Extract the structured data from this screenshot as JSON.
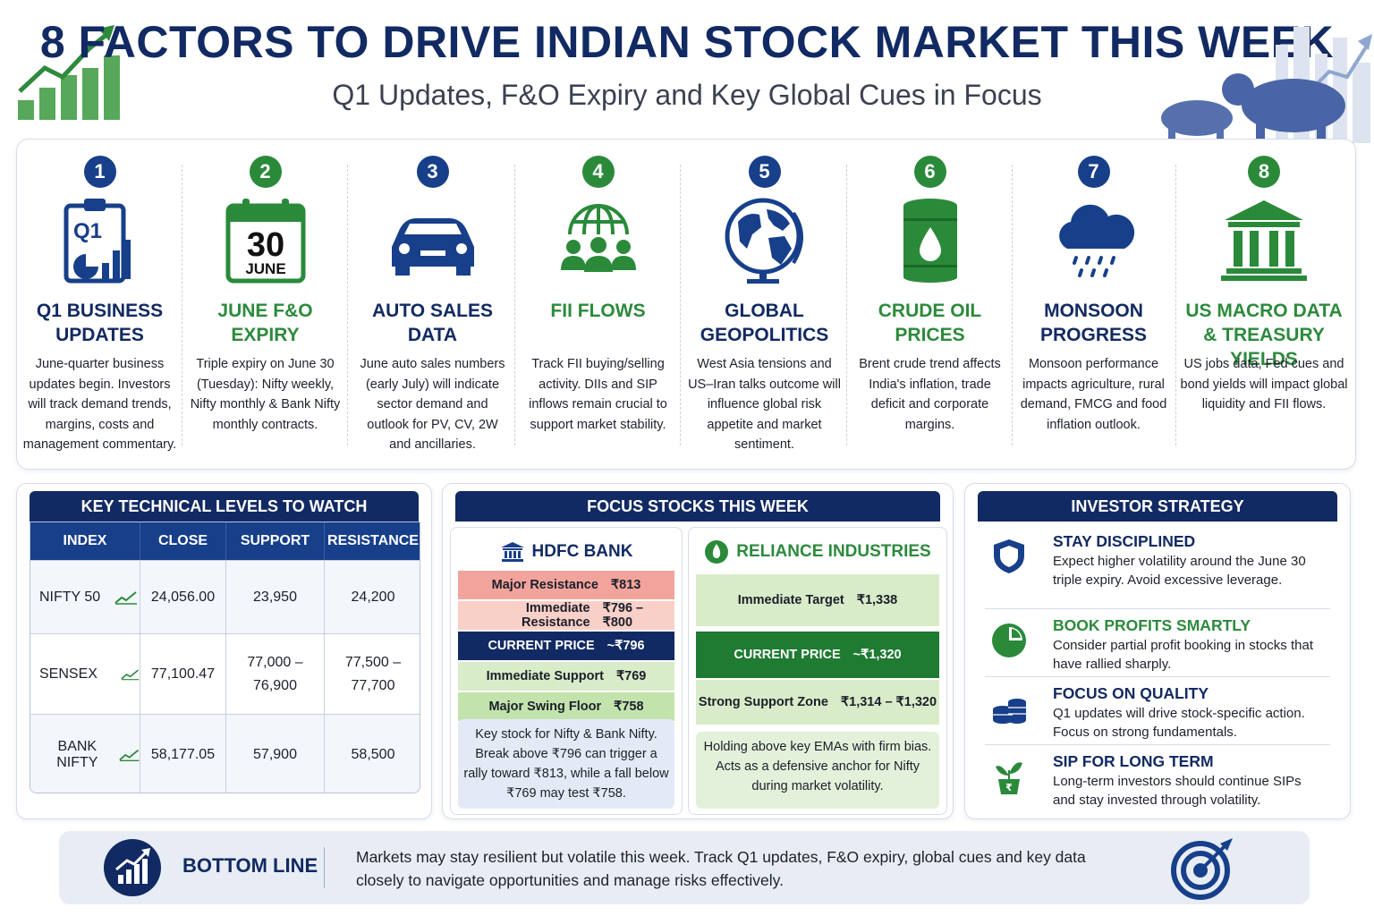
{
  "header": {
    "title": "8 FACTORS TO DRIVE INDIAN STOCK MARKET THIS WEEK",
    "subtitle": "Q1 Updates, F&O Expiry and Key Global Cues in Focus"
  },
  "factors": [
    {
      "num": "1",
      "title": "Q1 BUSINESS UPDATES",
      "desc": "June-quarter business updates begin. Investors will track demand trends, margins, costs and management commentary.",
      "icon": "q1-report-icon",
      "q1_label": "Q1"
    },
    {
      "num": "2",
      "title": "JUNE F&O EXPIRY",
      "desc": "Triple expiry on June 30 (Tuesday): Nifty weekly, Nifty monthly & Bank Nifty monthly contracts.",
      "icon": "calendar-icon",
      "cal_day": "30",
      "cal_month": "JUNE"
    },
    {
      "num": "3",
      "title": "AUTO SALES DATA",
      "desc": "June auto sales numbers (early July) will indicate sector demand and outlook for PV, CV, 2W and ancillaries.",
      "icon": "car-icon"
    },
    {
      "num": "4",
      "title": "FII FLOWS",
      "desc": "Track FII buying/selling activity. DIIs and SIP inflows remain crucial to support market stability.",
      "icon": "globe-investors-icon"
    },
    {
      "num": "5",
      "title": "GLOBAL GEOPOLITICS",
      "desc": "West Asia tensions and US–Iran talks outcome will influence global risk appetite and market sentiment.",
      "icon": "globe-icon"
    },
    {
      "num": "6",
      "title": "CRUDE OIL PRICES",
      "desc": "Brent crude trend affects India's inflation, trade deficit and corporate margins.",
      "icon": "oil-barrel-icon"
    },
    {
      "num": "7",
      "title": "MONSOON PROGRESS",
      "desc": "Monsoon performance impacts agriculture, rural demand, FMCG and food inflation outlook.",
      "icon": "rain-cloud-icon"
    },
    {
      "num": "8",
      "title": "US MACRO DATA & TREASURY YIELDS",
      "desc": "US jobs data, Fed cues and bond yields will impact global liquidity and FII flows.",
      "icon": "bank-building-icon"
    }
  ],
  "technical": {
    "heading": "KEY TECHNICAL LEVELS TO WATCH",
    "columns": [
      "INDEX",
      "CLOSE",
      "SUPPORT",
      "RESISTANCE"
    ],
    "rows": [
      {
        "index": "NIFTY 50",
        "close": "24,056.00",
        "support": "23,950",
        "resistance": "24,200"
      },
      {
        "index": "SENSEX",
        "close": "77,100.47",
        "support": "77,000 – 76,900",
        "resistance": "77,500 – 77,700"
      },
      {
        "index": "BANK NIFTY",
        "close": "58,177.05",
        "support": "57,900",
        "resistance": "58,500"
      }
    ]
  },
  "focus": {
    "heading": "FOCUS STOCKS THIS WEEK",
    "hdfc": {
      "name": "HDFC BANK",
      "levels": [
        {
          "label": "Major Resistance",
          "value": "₹813"
        },
        {
          "label": "Immediate Resistance",
          "value": "₹796 – ₹800"
        },
        {
          "label": "CURRENT PRICE",
          "value": "~₹796"
        },
        {
          "label": "Immediate Support",
          "value": "₹769"
        },
        {
          "label": "Major Swing Floor",
          "value": "₹758"
        }
      ],
      "note": "Key stock for Nifty & Bank Nifty. Break above ₹796 can trigger a rally toward ₹813, while a fall below ₹769 may test ₹758."
    },
    "reliance": {
      "name": "RELIANCE INDUSTRIES",
      "levels": [
        {
          "label": "Immediate Target",
          "value": "₹1,338"
        },
        {
          "label": "CURRENT PRICE",
          "value": "~₹1,320"
        },
        {
          "label": "Strong Support Zone",
          "value": "₹1,314 – ₹1,320"
        }
      ],
      "note": "Holding above key EMAs with firm bias. Acts as a defensive anchor for Nifty during market volatility."
    }
  },
  "strategy": {
    "heading": "INVESTOR STRATEGY",
    "items": [
      {
        "title": "STAY DISCIPLINED",
        "text": "Expect higher volatility around the June 30 triple expiry. Avoid excessive leverage.",
        "icon": "shield-icon"
      },
      {
        "title": "BOOK PROFITS SMARTLY",
        "text": "Consider partial profit booking in stocks that have rallied sharply.",
        "icon": "pie-chart-icon"
      },
      {
        "title": "FOCUS ON QUALITY",
        "text": "Q1 updates will drive stock-specific action. Focus on strong fundamentals.",
        "icon": "coins-stack-icon"
      },
      {
        "title": "SIP FOR LONG TERM",
        "text": "Long-term investors should continue SIPs and stay invested through volatility.",
        "icon": "plant-pot-icon"
      }
    ]
  },
  "bottom": {
    "label": "BOTTOM LINE",
    "text": "Markets may stay resilient but volatile this week. Track Q1 updates, F&O expiry, global cues and key data closely to navigate opportunities and manage risks effectively.",
    "icon_left": "growth-chart-icon",
    "icon_right": "target-icon"
  },
  "colors": {
    "navy": "#122a63",
    "green": "#2c8a3c",
    "red_band": "#f3a39b",
    "light_green": "#d8ecc9",
    "dark_green": "#1f7a32"
  }
}
